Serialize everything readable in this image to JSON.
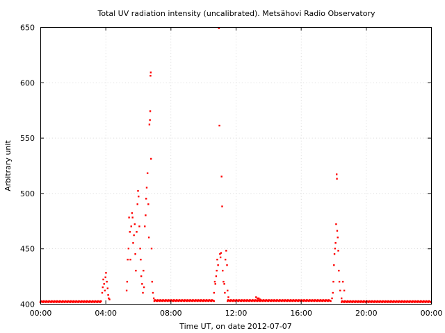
{
  "chart_data": {
    "type": "scatter",
    "title": "Total UV radiation intensity (uncalibrated). Metsähovi Radio Observatory",
    "xlabel": "Time UT, on date 2012-07-07",
    "ylabel": "Arbitrary unit",
    "xlim": [
      "00:00",
      "24:00"
    ],
    "ylim": [
      400,
      650
    ],
    "x_ticks": [
      "00:00",
      "04:00",
      "08:00",
      "12:00",
      "16:00",
      "20:00",
      "00:00"
    ],
    "y_ticks": [
      "400",
      "450",
      "500",
      "550",
      "600",
      "650"
    ],
    "grid": true,
    "legend": "none",
    "marker_color": "#ff0000",
    "baseline": {
      "segments": [
        {
          "from": "00:00",
          "to": "03:45",
          "value": 402
        },
        {
          "from": "07:00",
          "to": "10:40",
          "value": 403
        },
        {
          "from": "11:30",
          "to": "17:50",
          "value": 403
        },
        {
          "from": "18:30",
          "to": "24:00",
          "value": 402
        }
      ]
    },
    "series": [
      {
        "values": [
          [
            "03:48",
            410
          ],
          [
            "03:50",
            415
          ],
          [
            "03:52",
            422
          ],
          [
            "03:55",
            418
          ],
          [
            "03:58",
            412
          ],
          [
            "04:00",
            424
          ],
          [
            "04:02",
            428
          ],
          [
            "04:05",
            420
          ],
          [
            "04:08",
            414
          ],
          [
            "04:10",
            408
          ],
          [
            "04:12",
            405
          ],
          [
            "04:15",
            404
          ],
          [
            "05:18",
            412
          ],
          [
            "05:20",
            420
          ],
          [
            "05:22",
            440
          ],
          [
            "05:25",
            450
          ],
          [
            "05:27",
            478
          ],
          [
            "05:30",
            465
          ],
          [
            "05:32",
            440
          ],
          [
            "05:35",
            470
          ],
          [
            "05:38",
            482
          ],
          [
            "05:40",
            478
          ],
          [
            "05:42",
            455
          ],
          [
            "05:45",
            462
          ],
          [
            "05:48",
            472
          ],
          [
            "05:50",
            445
          ],
          [
            "05:52",
            430
          ],
          [
            "05:55",
            465
          ],
          [
            "05:58",
            490
          ],
          [
            "06:00",
            502
          ],
          [
            "06:02",
            497
          ],
          [
            "06:05",
            470
          ],
          [
            "06:08",
            450
          ],
          [
            "06:10",
            440
          ],
          [
            "06:12",
            425
          ],
          [
            "06:15",
            418
          ],
          [
            "06:18",
            410
          ],
          [
            "06:20",
            430
          ],
          [
            "06:22",
            415
          ],
          [
            "06:25",
            470
          ],
          [
            "06:28",
            480
          ],
          [
            "06:30",
            495
          ],
          [
            "06:32",
            505
          ],
          [
            "06:35",
            518
          ],
          [
            "06:38",
            490
          ],
          [
            "06:40",
            460
          ],
          [
            "06:42",
            562
          ],
          [
            "06:44",
            566
          ],
          [
            "06:45",
            574
          ],
          [
            "06:46",
            606
          ],
          [
            "06:47",
            609
          ],
          [
            "06:48",
            531
          ],
          [
            "06:50",
            450
          ],
          [
            "06:52",
            420
          ],
          [
            "06:55",
            410
          ],
          [
            "06:58",
            405
          ],
          [
            "10:40",
            410
          ],
          [
            "10:43",
            420
          ],
          [
            "10:45",
            418
          ],
          [
            "10:48",
            425
          ],
          [
            "10:50",
            430
          ],
          [
            "10:52",
            440
          ],
          [
            "10:55",
            435
          ],
          [
            "10:58",
            649
          ],
          [
            "11:00",
            561
          ],
          [
            "11:02",
            445
          ],
          [
            "11:04",
            442
          ],
          [
            "11:06",
            446
          ],
          [
            "11:08",
            515
          ],
          [
            "11:10",
            488
          ],
          [
            "11:12",
            430
          ],
          [
            "11:15",
            420
          ],
          [
            "11:18",
            418
          ],
          [
            "11:20",
            410
          ],
          [
            "11:22",
            440
          ],
          [
            "11:25",
            448
          ],
          [
            "11:28",
            435
          ],
          [
            "11:30",
            412
          ],
          [
            "11:33",
            406
          ],
          [
            "13:15",
            406
          ],
          [
            "13:20",
            405
          ],
          [
            "13:25",
            405
          ],
          [
            "13:30",
            404
          ],
          [
            "17:55",
            405
          ],
          [
            "17:58",
            410
          ],
          [
            "18:00",
            420
          ],
          [
            "18:02",
            435
          ],
          [
            "18:04",
            445
          ],
          [
            "18:06",
            450
          ],
          [
            "18:08",
            455
          ],
          [
            "18:10",
            472
          ],
          [
            "18:12",
            517
          ],
          [
            "18:13",
            513
          ],
          [
            "18:14",
            466
          ],
          [
            "18:16",
            460
          ],
          [
            "18:18",
            448
          ],
          [
            "18:20",
            430
          ],
          [
            "18:22",
            420
          ],
          [
            "18:25",
            412
          ],
          [
            "18:30",
            405
          ],
          [
            "18:35",
            420
          ],
          [
            "18:40",
            412
          ]
        ]
      }
    ]
  }
}
